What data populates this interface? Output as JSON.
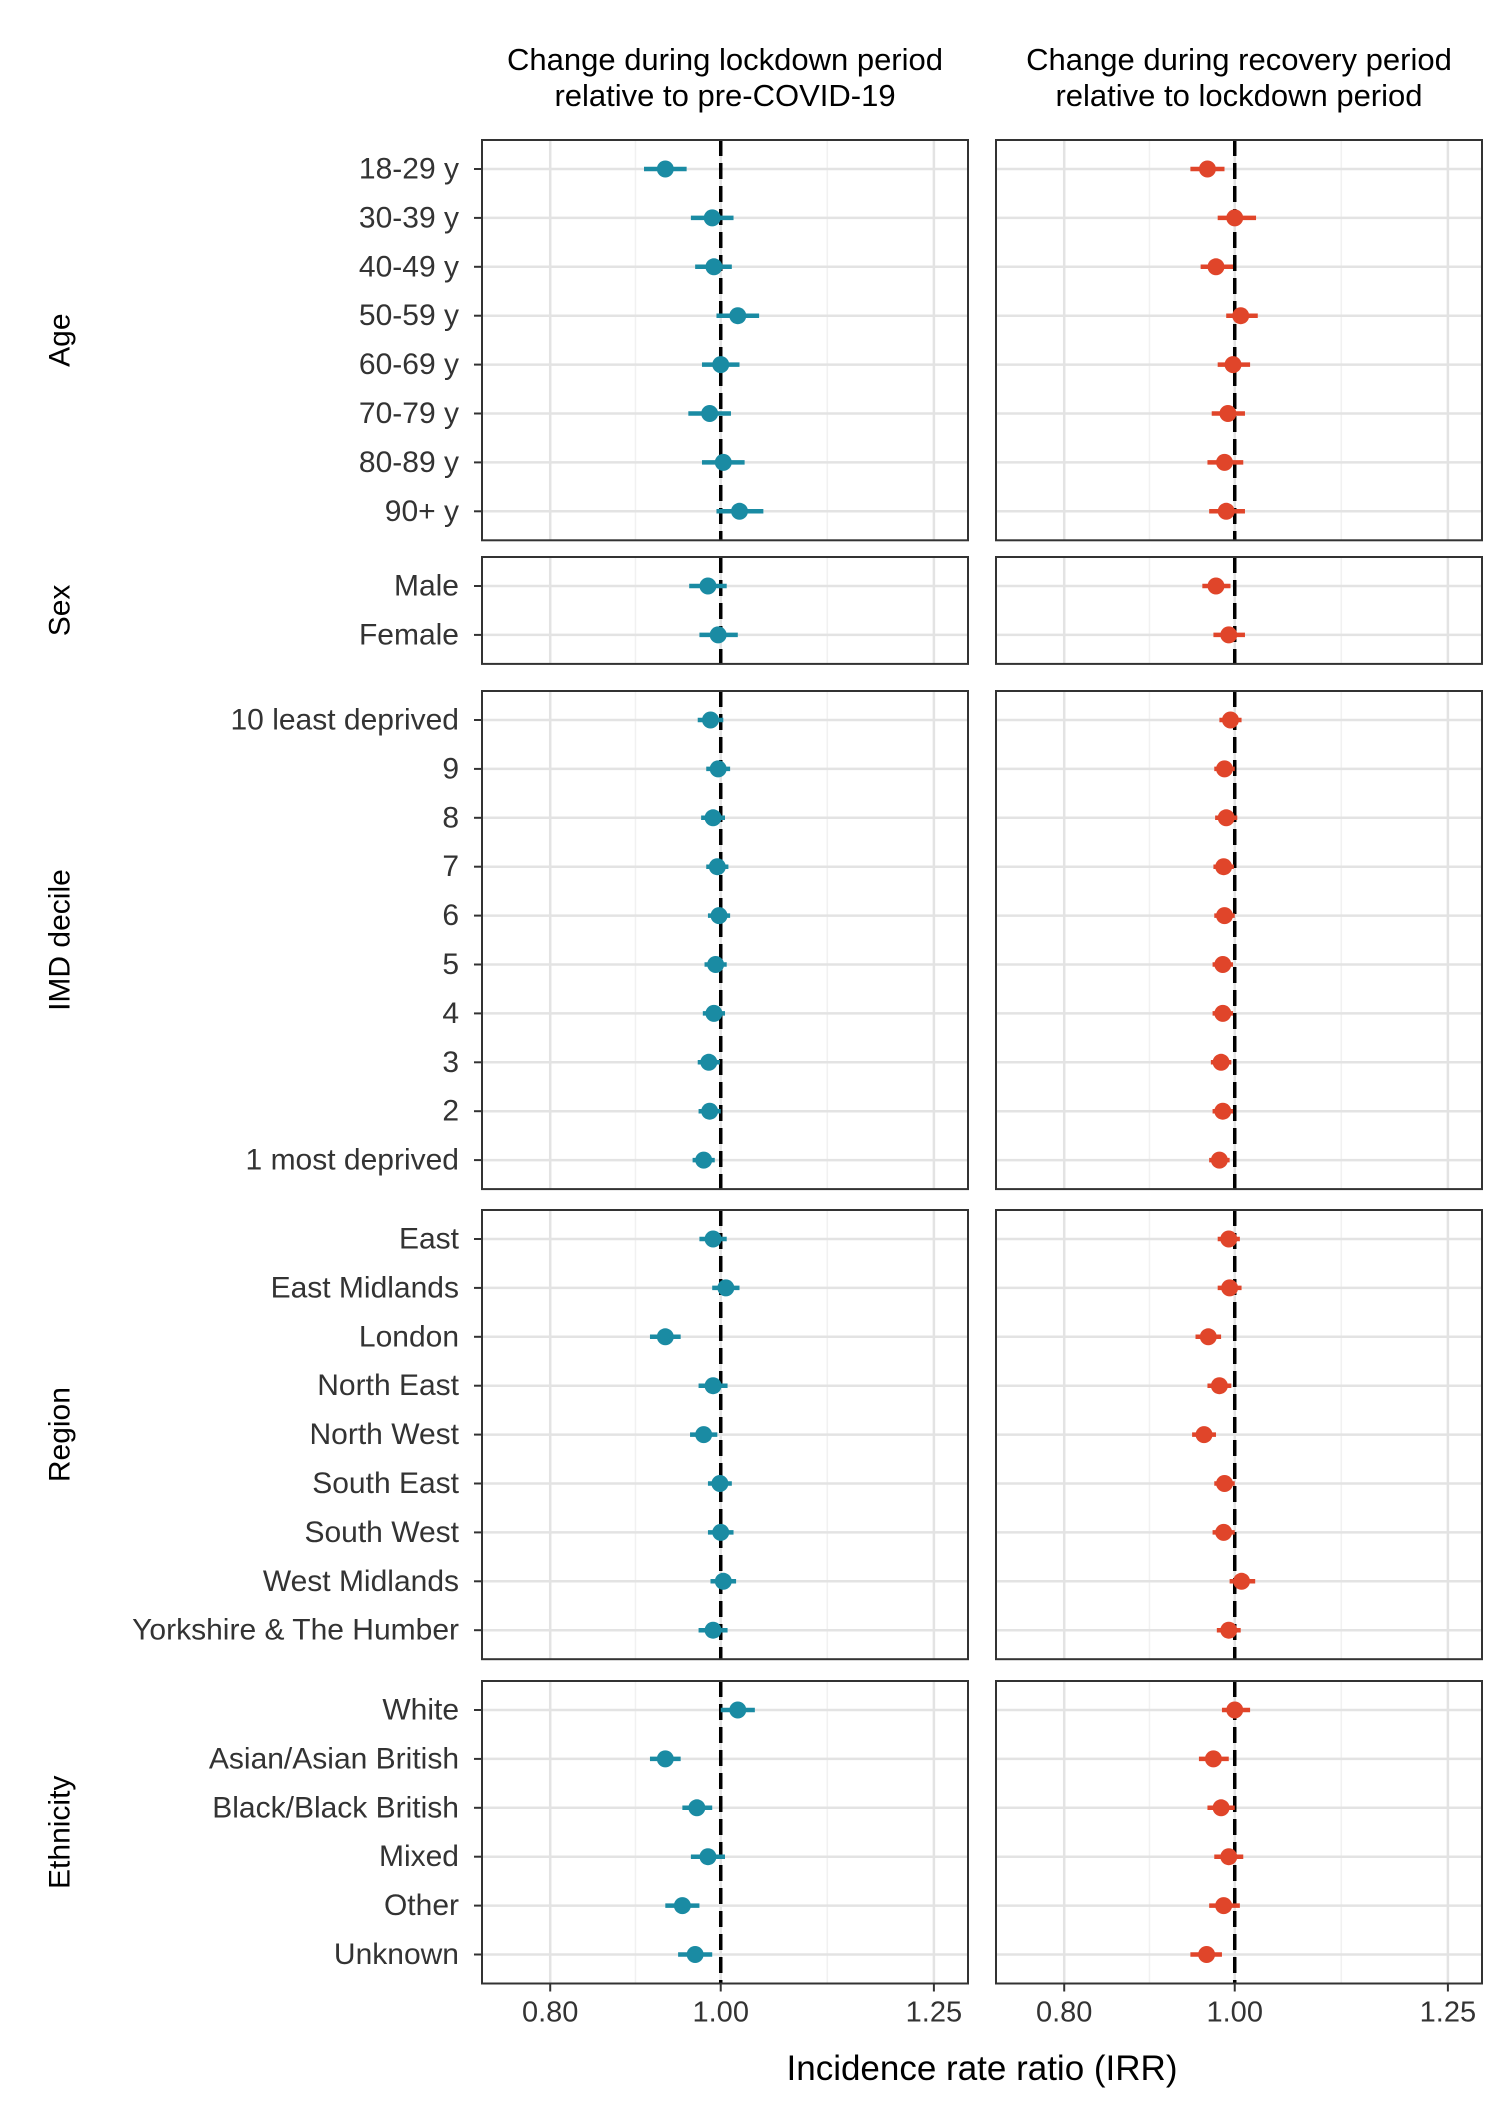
{
  "chart_data": {
    "type": "forest",
    "xlabel": "Incidence rate ratio (IRR)",
    "xlim": [
      0.72,
      1.29
    ],
    "xticks": [
      0.8,
      1.0,
      1.25
    ],
    "xtick_labels": [
      "0.80",
      "1.00",
      "1.25"
    ],
    "reference_line": 1.0,
    "grid": true,
    "columns": [
      {
        "title_line1": "Change during lockdown period",
        "title_line2": "relative to pre-COVID-19",
        "color": "#1a8ba3"
      },
      {
        "title_line1": "Change during recovery period",
        "title_line2": "relative to lockdown period",
        "color": "#e0452a"
      }
    ],
    "groups": [
      {
        "name": "Age",
        "rows": [
          {
            "label": "18-29 y",
            "values": [
              {
                "est": 0.935,
                "lo": 0.91,
                "hi": 0.96
              },
              {
                "est": 0.968,
                "lo": 0.948,
                "hi": 0.988
              }
            ]
          },
          {
            "label": "30-39 y",
            "values": [
              {
                "est": 0.99,
                "lo": 0.965,
                "hi": 1.015
              },
              {
                "est": 1.0,
                "lo": 0.98,
                "hi": 1.025
              }
            ]
          },
          {
            "label": "40-49 y",
            "values": [
              {
                "est": 0.992,
                "lo": 0.97,
                "hi": 1.013
              },
              {
                "est": 0.978,
                "lo": 0.96,
                "hi": 0.998
              }
            ]
          },
          {
            "label": "50-59 y",
            "values": [
              {
                "est": 1.02,
                "lo": 0.995,
                "hi": 1.045
              },
              {
                "est": 1.007,
                "lo": 0.99,
                "hi": 1.027
              }
            ]
          },
          {
            "label": "60-69 y",
            "values": [
              {
                "est": 1.0,
                "lo": 0.978,
                "hi": 1.022
              },
              {
                "est": 0.998,
                "lo": 0.98,
                "hi": 1.018
              }
            ]
          },
          {
            "label": "70-79 y",
            "values": [
              {
                "est": 0.987,
                "lo": 0.962,
                "hi": 1.012
              },
              {
                "est": 0.992,
                "lo": 0.973,
                "hi": 1.012
              }
            ]
          },
          {
            "label": "80-89 y",
            "values": [
              {
                "est": 1.003,
                "lo": 0.978,
                "hi": 1.028
              },
              {
                "est": 0.988,
                "lo": 0.968,
                "hi": 1.01
              }
            ]
          },
          {
            "label": "90+ y",
            "values": [
              {
                "est": 1.022,
                "lo": 0.995,
                "hi": 1.05
              },
              {
                "est": 0.99,
                "lo": 0.97,
                "hi": 1.012
              }
            ]
          }
        ]
      },
      {
        "name": "Sex",
        "rows": [
          {
            "label": "Male",
            "values": [
              {
                "est": 0.985,
                "lo": 0.963,
                "hi": 1.007
              },
              {
                "est": 0.978,
                "lo": 0.962,
                "hi": 0.995
              }
            ]
          },
          {
            "label": "Female",
            "values": [
              {
                "est": 0.997,
                "lo": 0.975,
                "hi": 1.02
              },
              {
                "est": 0.993,
                "lo": 0.975,
                "hi": 1.012
              }
            ]
          }
        ]
      },
      {
        "name": "IMD decile",
        "rows": [
          {
            "label": "10 least deprived",
            "values": [
              {
                "est": 0.988,
                "lo": 0.973,
                "hi": 1.003
              },
              {
                "est": 0.995,
                "lo": 0.982,
                "hi": 1.008
              }
            ]
          },
          {
            "label": "9",
            "values": [
              {
                "est": 0.997,
                "lo": 0.983,
                "hi": 1.011
              },
              {
                "est": 0.988,
                "lo": 0.976,
                "hi": 1.0
              }
            ]
          },
          {
            "label": "8",
            "values": [
              {
                "est": 0.991,
                "lo": 0.977,
                "hi": 1.005
              },
              {
                "est": 0.99,
                "lo": 0.977,
                "hi": 1.003
              }
            ]
          },
          {
            "label": "7",
            "values": [
              {
                "est": 0.996,
                "lo": 0.983,
                "hi": 1.009
              },
              {
                "est": 0.987,
                "lo": 0.975,
                "hi": 0.999
              }
            ]
          },
          {
            "label": "6",
            "values": [
              {
                "est": 0.998,
                "lo": 0.985,
                "hi": 1.011
              },
              {
                "est": 0.988,
                "lo": 0.976,
                "hi": 1.0
              }
            ]
          },
          {
            "label": "5",
            "values": [
              {
                "est": 0.994,
                "lo": 0.981,
                "hi": 1.007
              },
              {
                "est": 0.986,
                "lo": 0.974,
                "hi": 0.998
              }
            ]
          },
          {
            "label": "4",
            "values": [
              {
                "est": 0.992,
                "lo": 0.979,
                "hi": 1.005
              },
              {
                "est": 0.986,
                "lo": 0.974,
                "hi": 0.998
              }
            ]
          },
          {
            "label": "3",
            "values": [
              {
                "est": 0.986,
                "lo": 0.973,
                "hi": 0.999
              },
              {
                "est": 0.984,
                "lo": 0.972,
                "hi": 0.996
              }
            ]
          },
          {
            "label": "2",
            "values": [
              {
                "est": 0.987,
                "lo": 0.974,
                "hi": 1.0
              },
              {
                "est": 0.986,
                "lo": 0.974,
                "hi": 0.998
              }
            ]
          },
          {
            "label": "1 most deprived",
            "values": [
              {
                "est": 0.98,
                "lo": 0.967,
                "hi": 0.993
              },
              {
                "est": 0.982,
                "lo": 0.97,
                "hi": 0.994
              }
            ]
          }
        ]
      },
      {
        "name": "Region",
        "rows": [
          {
            "label": "East",
            "values": [
              {
                "est": 0.991,
                "lo": 0.975,
                "hi": 1.007
              },
              {
                "est": 0.993,
                "lo": 0.98,
                "hi": 1.006
              }
            ]
          },
          {
            "label": "East Midlands",
            "values": [
              {
                "est": 1.006,
                "lo": 0.99,
                "hi": 1.022
              },
              {
                "est": 0.994,
                "lo": 0.98,
                "hi": 1.008
              }
            ]
          },
          {
            "label": "London",
            "values": [
              {
                "est": 0.935,
                "lo": 0.917,
                "hi": 0.953
              },
              {
                "est": 0.969,
                "lo": 0.954,
                "hi": 0.984
              }
            ]
          },
          {
            "label": "North East",
            "values": [
              {
                "est": 0.991,
                "lo": 0.974,
                "hi": 1.008
              },
              {
                "est": 0.982,
                "lo": 0.968,
                "hi": 0.996
              }
            ]
          },
          {
            "label": "North West",
            "values": [
              {
                "est": 0.98,
                "lo": 0.964,
                "hi": 0.996
              },
              {
                "est": 0.964,
                "lo": 0.95,
                "hi": 0.978
              }
            ]
          },
          {
            "label": "South East",
            "values": [
              {
                "est": 0.999,
                "lo": 0.985,
                "hi": 1.013
              },
              {
                "est": 0.988,
                "lo": 0.976,
                "hi": 1.0
              }
            ]
          },
          {
            "label": "South West",
            "values": [
              {
                "est": 1.0,
                "lo": 0.985,
                "hi": 1.015
              },
              {
                "est": 0.987,
                "lo": 0.974,
                "hi": 1.0
              }
            ]
          },
          {
            "label": "West Midlands",
            "values": [
              {
                "est": 1.003,
                "lo": 0.988,
                "hi": 1.018
              },
              {
                "est": 1.008,
                "lo": 0.994,
                "hi": 1.024
              }
            ]
          },
          {
            "label": "Yorkshire & The Humber",
            "values": [
              {
                "est": 0.991,
                "lo": 0.974,
                "hi": 1.008
              },
              {
                "est": 0.993,
                "lo": 0.979,
                "hi": 1.007
              }
            ]
          }
        ]
      },
      {
        "name": "Ethnicity",
        "rows": [
          {
            "label": "White",
            "values": [
              {
                "est": 1.02,
                "lo": 1.0,
                "hi": 1.04
              },
              {
                "est": 1.0,
                "lo": 0.985,
                "hi": 1.018
              }
            ]
          },
          {
            "label": "Asian/Asian British",
            "values": [
              {
                "est": 0.935,
                "lo": 0.917,
                "hi": 0.953
              },
              {
                "est": 0.975,
                "lo": 0.958,
                "hi": 0.993
              }
            ]
          },
          {
            "label": "Black/Black British",
            "values": [
              {
                "est": 0.972,
                "lo": 0.955,
                "hi": 0.99
              },
              {
                "est": 0.984,
                "lo": 0.968,
                "hi": 1.0
              }
            ]
          },
          {
            "label": "Mixed",
            "values": [
              {
                "est": 0.985,
                "lo": 0.965,
                "hi": 1.005
              },
              {
                "est": 0.993,
                "lo": 0.976,
                "hi": 1.01
              }
            ]
          },
          {
            "label": "Other",
            "values": [
              {
                "est": 0.955,
                "lo": 0.935,
                "hi": 0.975
              },
              {
                "est": 0.987,
                "lo": 0.97,
                "hi": 1.006
              }
            ]
          },
          {
            "label": "Unknown",
            "values": [
              {
                "est": 0.97,
                "lo": 0.95,
                "hi": 0.99
              },
              {
                "est": 0.967,
                "lo": 0.948,
                "hi": 0.985
              }
            ]
          }
        ]
      }
    ]
  }
}
